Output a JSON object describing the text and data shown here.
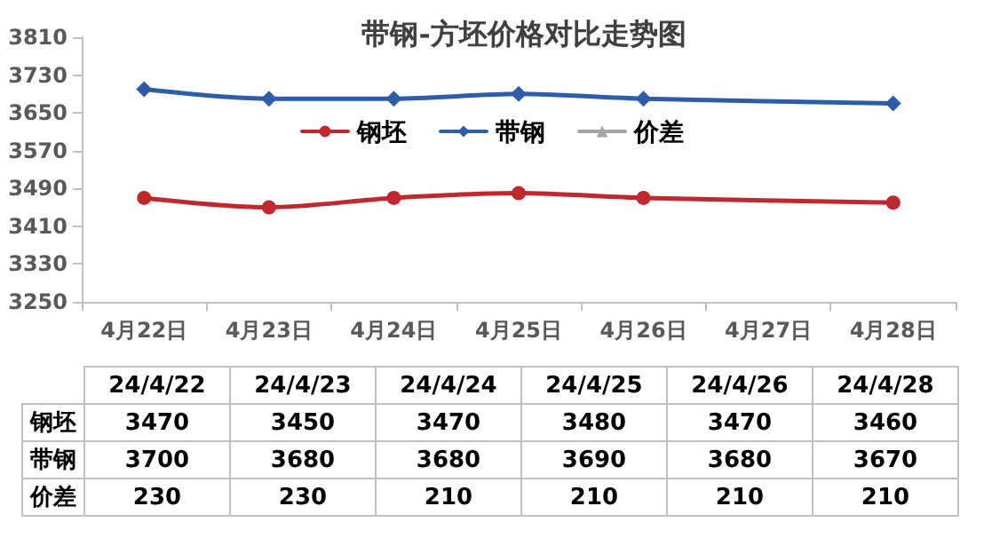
{
  "chart_data": [
    {
      "type": "line",
      "title": "带钢-方坯价格对比走势图",
      "categories": [
        "4月22日",
        "4月23日",
        "4月24日",
        "4月25日",
        "4月26日",
        "4月27日",
        "4月28日"
      ],
      "series": [
        {
          "name": "钢坯",
          "color": "#c0282e",
          "marker": "circle",
          "values": [
            3470,
            3450,
            3470,
            3480,
            3470,
            null,
            3460
          ]
        },
        {
          "name": "带钢",
          "color": "#2f5caa",
          "marker": "diamond",
          "values": [
            3700,
            3680,
            3680,
            3690,
            3680,
            null,
            3670
          ]
        },
        {
          "name": "价差",
          "color": "#a5a5a5",
          "marker": "triangle",
          "values": [
            null,
            null,
            null,
            null,
            null,
            null,
            null
          ]
        }
      ],
      "ylim": [
        3250,
        3810
      ],
      "yticks": [
        3250,
        3330,
        3410,
        3490,
        3570,
        3650,
        3730,
        3810
      ],
      "grid": false,
      "legend": "top"
    },
    {
      "type": "other",
      "categories": [
        "24/4/22",
        "24/4/23",
        "24/4/24",
        "24/4/25",
        "24/4/26",
        "24/4/28"
      ],
      "series": [
        {
          "name": "钢坯",
          "values": [
            3470,
            3450,
            3470,
            3480,
            3470,
            3460
          ]
        },
        {
          "name": "带钢",
          "values": [
            3700,
            3680,
            3680,
            3690,
            3680,
            3670
          ]
        },
        {
          "name": "价差",
          "values": [
            230,
            230,
            210,
            210,
            210,
            210
          ]
        }
      ],
      "data_labels": true
    }
  ]
}
